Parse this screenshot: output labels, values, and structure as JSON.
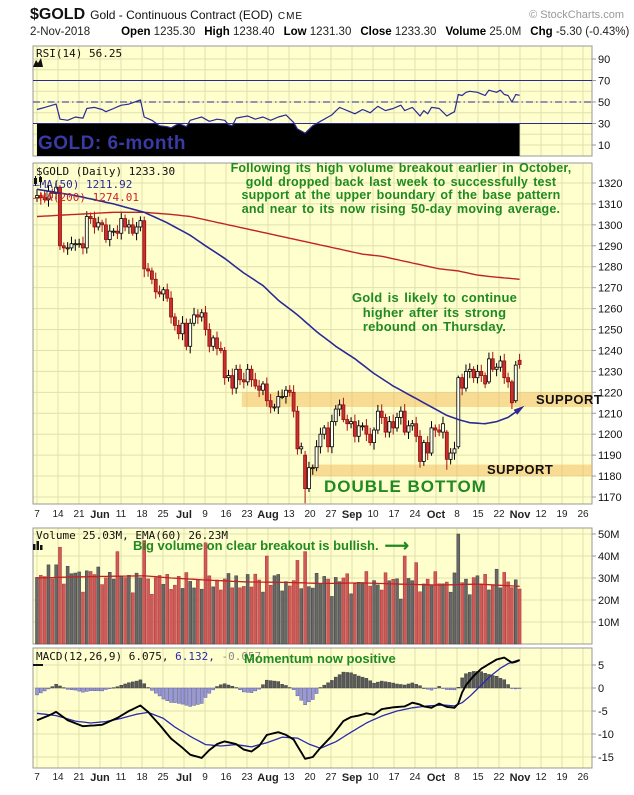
{
  "header": {
    "symbol": "$GOLD",
    "name": "Gold - Continuous Contract (EOD)",
    "exchange": "CME",
    "copyright": "© StockCharts.com",
    "date": "2-Nov-2018",
    "quote": [
      {
        "label": "Open",
        "value": "1235.30"
      },
      {
        "label": "High",
        "value": "1238.40"
      },
      {
        "label": "Low",
        "value": "1231.30"
      },
      {
        "label": "Close",
        "value": "1233.30"
      },
      {
        "label": "Volume",
        "value": "25.0M"
      },
      {
        "label": "Chg",
        "value": "-5.30 (-0.43%)"
      }
    ],
    "down_arrow": "▼"
  },
  "chart_data": {
    "type": "candlestick",
    "title": "$GOLD (Daily)",
    "x_axis": {
      "labels": [
        "7",
        "14",
        "21",
        "Jun",
        "11",
        "18",
        "25",
        "Jul",
        "9",
        "16",
        "23",
        "Aug",
        "13",
        "20",
        "27",
        "Sep",
        "10",
        "17",
        "24",
        "Oct",
        "8",
        "15",
        "22",
        "Nov",
        "12",
        "19",
        "26"
      ],
      "month_indices": [
        3,
        7,
        11,
        15,
        19,
        23
      ]
    },
    "rsi": {
      "legend": "RSI(14) 56.25",
      "caption": "GOLD: 6-month",
      "y_ticks": [
        90,
        70,
        50,
        30,
        10
      ],
      "overbought": 70,
      "midline": 50,
      "oversold": 30,
      "anchors": [
        [
          0,
          43
        ],
        [
          2,
          45
        ],
        [
          4,
          47
        ],
        [
          5,
          48
        ],
        [
          6,
          34
        ],
        [
          8,
          33
        ],
        [
          10,
          36
        ],
        [
          12,
          35
        ],
        [
          13,
          44
        ],
        [
          15,
          45
        ],
        [
          17,
          43
        ],
        [
          18,
          41
        ],
        [
          20,
          44
        ],
        [
          22,
          47
        ],
        [
          24,
          48
        ],
        [
          27,
          52
        ],
        [
          28,
          36
        ],
        [
          30,
          33
        ],
        [
          32,
          28
        ],
        [
          34,
          27
        ],
        [
          35,
          26
        ],
        [
          37,
          30
        ],
        [
          39,
          27
        ],
        [
          40,
          33
        ],
        [
          42,
          35
        ],
        [
          43,
          36
        ],
        [
          45,
          32
        ],
        [
          47,
          34
        ],
        [
          49,
          33
        ],
        [
          50,
          29
        ],
        [
          51,
          28
        ],
        [
          52,
          35
        ],
        [
          55,
          37
        ],
        [
          57,
          34
        ],
        [
          59,
          36
        ],
        [
          61,
          33
        ],
        [
          63,
          36
        ],
        [
          65,
          38
        ],
        [
          67,
          31
        ],
        [
          68,
          25
        ],
        [
          70,
          21
        ],
        [
          72,
          28
        ],
        [
          74,
          32
        ],
        [
          76,
          36
        ],
        [
          77,
          38
        ],
        [
          79,
          45
        ],
        [
          81,
          42
        ],
        [
          83,
          39
        ],
        [
          85,
          43
        ],
        [
          87,
          40
        ],
        [
          89,
          46
        ],
        [
          91,
          42
        ],
        [
          93,
          44
        ],
        [
          95,
          47
        ],
        [
          96,
          42
        ],
        [
          98,
          45
        ],
        [
          100,
          37
        ],
        [
          101,
          42
        ],
        [
          102,
          39
        ],
        [
          103,
          45
        ],
        [
          105,
          44
        ],
        [
          107,
          37
        ],
        [
          109,
          41
        ],
        [
          110,
          57
        ],
        [
          111,
          56
        ],
        [
          112,
          59
        ],
        [
          113,
          60
        ],
        [
          115,
          59
        ],
        [
          117,
          56
        ],
        [
          118,
          61
        ],
        [
          120,
          59
        ],
        [
          121,
          61
        ],
        [
          122,
          57
        ],
        [
          123,
          56
        ],
        [
          124,
          50
        ],
        [
          125,
          57
        ],
        [
          126,
          56.25
        ]
      ]
    },
    "price": {
      "legend_symbol": "$GOLD (Daily) 1233.30",
      "legend_ma50": "MA(50) 1211.92",
      "legend_ma200": "MA(200) 1274.01",
      "y_ticks": [
        1320,
        1310,
        1300,
        1290,
        1280,
        1270,
        1260,
        1250,
        1240,
        1230,
        1220,
        1210,
        1200,
        1190,
        1180,
        1170
      ],
      "closes": [
        1314,
        1313,
        1312,
        1316,
        1315,
        1318,
        1290,
        1289,
        1289,
        1291,
        1291,
        1291,
        1289,
        1304,
        1303,
        1299,
        1301,
        1300,
        1293,
        1297,
        1297,
        1296,
        1303,
        1299,
        1300,
        1296,
        1299,
        1302,
        1279,
        1278,
        1274,
        1268,
        1267,
        1269,
        1265,
        1256,
        1252,
        1248,
        1253,
        1242,
        1253,
        1257,
        1256,
        1258,
        1250,
        1242,
        1246,
        1241,
        1240,
        1227,
        1228,
        1222,
        1231,
        1226,
        1225,
        1231,
        1226,
        1223,
        1221,
        1224,
        1216,
        1213,
        1213,
        1218,
        1218,
        1221,
        1220,
        1211,
        1193,
        1194,
        1174,
        1184,
        1184,
        1194,
        1200,
        1203,
        1194,
        1206,
        1212,
        1214,
        1207,
        1205,
        1206,
        1199,
        1204,
        1204,
        1200,
        1196,
        1202,
        1211,
        1208,
        1201,
        1206,
        1203,
        1208,
        1211,
        1201,
        1204,
        1205,
        1199,
        1187,
        1196,
        1191,
        1203,
        1202,
        1201,
        1205,
        1188,
        1191,
        1193,
        1227,
        1222,
        1230,
        1231,
        1227,
        1230,
        1228,
        1224,
        1236,
        1231,
        1232,
        1235,
        1227,
        1225,
        1215,
        1233,
        1233.3
      ],
      "ohlc_overrides": {
        "0": [
          1313,
          1317,
          1311,
          1314
        ],
        "6": [
          1318,
          1319,
          1288,
          1290
        ],
        "28": [
          1302,
          1304,
          1275,
          1279
        ],
        "70": [
          1190,
          1192,
          1167,
          1174
        ],
        "107": [
          1201,
          1202,
          1183,
          1188
        ],
        "110": [
          1194,
          1228,
          1193,
          1227
        ],
        "118": [
          1225,
          1239,
          1224,
          1236
        ],
        "124": [
          1225,
          1226,
          1212,
          1215
        ],
        "125": [
          1216,
          1235,
          1215,
          1233
        ],
        "126": [
          1235.3,
          1238.4,
          1231.3,
          1233.3
        ]
      },
      "ma50_anchors": [
        [
          0,
          1317
        ],
        [
          10,
          1314
        ],
        [
          20,
          1310
        ],
        [
          28,
          1306
        ],
        [
          34,
          1301
        ],
        [
          40,
          1295
        ],
        [
          44,
          1290
        ],
        [
          49,
          1284
        ],
        [
          54,
          1277
        ],
        [
          59,
          1271
        ],
        [
          63,
          1264
        ],
        [
          68,
          1257
        ],
        [
          73,
          1249
        ],
        [
          78,
          1242
        ],
        [
          83,
          1236
        ],
        [
          88,
          1229
        ],
        [
          93,
          1223
        ],
        [
          98,
          1218
        ],
        [
          103,
          1213
        ],
        [
          107,
          1209
        ],
        [
          110,
          1207
        ],
        [
          113,
          1205.5
        ],
        [
          117,
          1205
        ],
        [
          120,
          1206
        ],
        [
          123,
          1208
        ],
        [
          126,
          1211.92
        ]
      ],
      "ma200_anchors": [
        [
          0,
          1304
        ],
        [
          10,
          1305
        ],
        [
          20,
          1306
        ],
        [
          28,
          1306
        ],
        [
          35,
          1305
        ],
        [
          40,
          1304
        ],
        [
          45,
          1302
        ],
        [
          50,
          1300
        ],
        [
          55,
          1298
        ],
        [
          60,
          1296
        ],
        [
          65,
          1294
        ],
        [
          70,
          1292
        ],
        [
          75,
          1290
        ],
        [
          80,
          1288
        ],
        [
          85,
          1286
        ],
        [
          90,
          1285
        ],
        [
          95,
          1283
        ],
        [
          100,
          1281
        ],
        [
          105,
          1279
        ],
        [
          110,
          1278
        ],
        [
          115,
          1276
        ],
        [
          120,
          1275
        ],
        [
          126,
          1274.01
        ]
      ],
      "support_bands": [
        {
          "start_idx": 54,
          "price_low": 1213,
          "price_high": 1220
        },
        {
          "start_idx": 72,
          "price_low": 1180,
          "price_high": 1185.5
        }
      ],
      "labels": {
        "support_upper": "SUPPORT",
        "support_lower": "SUPPORT",
        "double_bottom": "DOUBLE BOTTOM"
      },
      "annotation_top": "Following its high volume breakout earlier in October,\ngold dropped back last week to successfully test\nsupport at the upper boundary of the base pattern\nand near to its now rising 50-day moving average.",
      "annotation_mid": "Gold is likely to continue\nhigher after its strong\nrebound on Thursday."
    },
    "volume": {
      "legend": "Volume 25.03M, EMA(60) 26.23M",
      "annotation": "Big volume on clear breakout is bullish.",
      "arrow": "→",
      "y_ticks": [
        "50M",
        "40M",
        "30M",
        "20M",
        "10M"
      ],
      "y_values": [
        50,
        40,
        30,
        20,
        10
      ],
      "current": 25.03,
      "ema_current": 26.23,
      "ema_anchors": [
        [
          0,
          30
        ],
        [
          10,
          30.5
        ],
        [
          20,
          30.8
        ],
        [
          28,
          31
        ],
        [
          35,
          30
        ],
        [
          45,
          29
        ],
        [
          55,
          28.2
        ],
        [
          65,
          28
        ],
        [
          75,
          27.5
        ],
        [
          85,
          27.8
        ],
        [
          95,
          27.2
        ],
        [
          105,
          26.8
        ],
        [
          115,
          27.2
        ],
        [
          126,
          26.23
        ]
      ],
      "overrides": {
        "5": 36,
        "6": 44,
        "21": 42,
        "28": 47,
        "44": 46,
        "60": 40,
        "68": 38,
        "70": 42,
        "96": 40,
        "99": 37,
        "110": 50,
        "120": 34,
        "126": 25
      }
    },
    "macd": {
      "legend_prefix": "MACD(12,26,9)",
      "value_macd": "6.075,",
      "value_signal": "6.132,",
      "value_hist": "-0.057",
      "annotation": "Momentum now positive",
      "y_ticks": [
        5,
        0,
        -5,
        -10,
        -15
      ],
      "macd_anchors": [
        [
          0,
          -7
        ],
        [
          3,
          -6
        ],
        [
          5,
          -5.2
        ],
        [
          8,
          -7
        ],
        [
          12,
          -8.3
        ],
        [
          17,
          -8
        ],
        [
          21,
          -6.5
        ],
        [
          24,
          -5
        ],
        [
          27,
          -3.8
        ],
        [
          29,
          -5.2
        ],
        [
          32,
          -8
        ],
        [
          35,
          -11
        ],
        [
          38,
          -13
        ],
        [
          40,
          -14.5
        ],
        [
          43,
          -15.2
        ],
        [
          45,
          -13.5
        ],
        [
          47,
          -12.2
        ],
        [
          49,
          -11.6
        ],
        [
          52,
          -12.2
        ],
        [
          54,
          -13.4
        ],
        [
          56,
          -13.8
        ],
        [
          58,
          -12.6
        ],
        [
          60,
          -10.2
        ],
        [
          63,
          -9.6
        ],
        [
          65,
          -10.2
        ],
        [
          67,
          -11.2
        ],
        [
          70,
          -15.4
        ],
        [
          72,
          -15
        ],
        [
          74,
          -13
        ],
        [
          77,
          -10.4
        ],
        [
          80,
          -7.2
        ],
        [
          82,
          -6.3
        ],
        [
          84,
          -6
        ],
        [
          86,
          -5.5
        ],
        [
          88,
          -5.8
        ],
        [
          90,
          -4.6
        ],
        [
          93,
          -4.2
        ],
        [
          96,
          -4
        ],
        [
          98,
          -3.2
        ],
        [
          100,
          -3.6
        ],
        [
          101,
          -4
        ],
        [
          103,
          -4.3
        ],
        [
          105,
          -3.4
        ],
        [
          107,
          -4.1
        ],
        [
          109,
          -4.3
        ],
        [
          110,
          -3.4
        ],
        [
          111,
          -1
        ],
        [
          112,
          0.6
        ],
        [
          114,
          2.6
        ],
        [
          116,
          4.2
        ],
        [
          118,
          5.2
        ],
        [
          120,
          6.2
        ],
        [
          122,
          6.6
        ],
        [
          124,
          5.5
        ],
        [
          125,
          5.7
        ],
        [
          126,
          6.075
        ]
      ],
      "signal_anchors": [
        [
          0,
          -5.5
        ],
        [
          5,
          -6
        ],
        [
          10,
          -7.2
        ],
        [
          14,
          -7.6
        ],
        [
          18,
          -7.3
        ],
        [
          22,
          -6.6
        ],
        [
          26,
          -5.7
        ],
        [
          29,
          -5.3
        ],
        [
          33,
          -6.6
        ],
        [
          36,
          -8.5
        ],
        [
          40,
          -10.5
        ],
        [
          44,
          -12.3
        ],
        [
          48,
          -12.6
        ],
        [
          52,
          -12.3
        ],
        [
          56,
          -12.8
        ],
        [
          60,
          -11.9
        ],
        [
          64,
          -10.7
        ],
        [
          68,
          -10.9
        ],
        [
          71,
          -12.2
        ],
        [
          74,
          -13.1
        ],
        [
          78,
          -11.7
        ],
        [
          82,
          -9.6
        ],
        [
          86,
          -7.6
        ],
        [
          90,
          -6.1
        ],
        [
          94,
          -5
        ],
        [
          98,
          -4.3
        ],
        [
          102,
          -3.9
        ],
        [
          106,
          -3.7
        ],
        [
          109,
          -3.9
        ],
        [
          111,
          -3.2
        ],
        [
          113,
          -1.8
        ],
        [
          115,
          -0.2
        ],
        [
          117,
          1.5
        ],
        [
          119,
          3
        ],
        [
          121,
          4.3
        ],
        [
          123,
          5.3
        ],
        [
          125,
          5.9
        ],
        [
          126,
          6.132
        ]
      ]
    },
    "colors": {
      "panel_bg": "#ffffce",
      "grid": "#e0e0ae",
      "border": "#999999",
      "navy": "#2a2a96",
      "red_line": "#c22222",
      "candle_down": "#cc2e2e",
      "candle_up_fill": "#fffff2",
      "vol_up": "#686868",
      "vol_down": "#d05a5a",
      "hist_pos": "#5a5a5a",
      "hist_neg": "#9a9ad2",
      "green_text": "#1f8a1f",
      "support_band": "#f2b24d"
    }
  }
}
